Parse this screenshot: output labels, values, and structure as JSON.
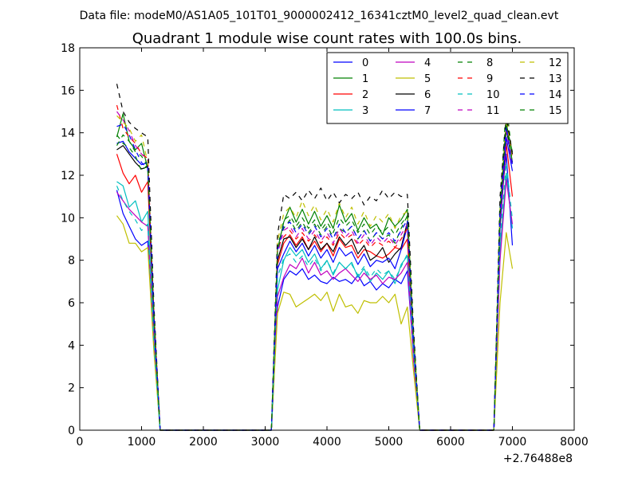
{
  "chart_data": {
    "type": "line",
    "suptitle": "Data file: modeM0/AS1A05_101T01_9000002412_16341cztM0_level2_quad_clean.evt",
    "title": "Quadrant 1 module wise count rates with 100.0s bins.",
    "xlabel": "",
    "ylabel": "",
    "x_offset_label": "+2.76488e8",
    "xlim": [
      0,
      8000
    ],
    "ylim": [
      0,
      18
    ],
    "xticks": [
      0,
      1000,
      2000,
      3000,
      4000,
      5000,
      6000,
      7000,
      8000
    ],
    "yticks": [
      0,
      2,
      4,
      6,
      8,
      10,
      12,
      14,
      16,
      18
    ],
    "grid": false,
    "legend_position": "top-right",
    "x": [
      600,
      700,
      800,
      900,
      1000,
      1100,
      1200,
      1300,
      1400,
      1500,
      1600,
      1700,
      1800,
      1900,
      2000,
      2100,
      2200,
      2300,
      2400,
      2500,
      2600,
      2700,
      2800,
      2900,
      3000,
      3100,
      3200,
      3300,
      3400,
      3500,
      3600,
      3700,
      3800,
      3900,
      4000,
      4100,
      4200,
      4300,
      4400,
      4500,
      4600,
      4700,
      4800,
      4900,
      5000,
      5100,
      5200,
      5300,
      5400,
      5500,
      5600,
      5700,
      5800,
      5900,
      6000,
      6100,
      6200,
      6300,
      6400,
      6500,
      6600,
      6700,
      6800,
      6900,
      7000
    ],
    "series": [
      {
        "name": "0",
        "color": "#0000ff",
        "dash": "solid",
        "values": [
          11.3,
          10.2,
          9.6,
          9.0,
          8.7,
          8.9,
          4.0,
          0,
          0,
          0,
          0,
          0,
          0,
          0,
          0,
          0,
          0,
          0,
          0,
          0,
          0,
          0,
          0,
          0,
          0,
          0,
          5.8,
          7.1,
          7.5,
          7.3,
          7.6,
          7.1,
          7.3,
          7.0,
          6.9,
          7.2,
          7.0,
          7.1,
          6.9,
          7.3,
          6.8,
          7.0,
          6.6,
          6.9,
          6.7,
          7.1,
          6.9,
          7.5,
          3.5,
          0,
          0,
          0,
          0,
          0,
          0,
          0,
          0,
          0,
          0,
          0,
          0,
          0,
          10.2,
          13.0,
          8.7
        ]
      },
      {
        "name": "1",
        "color": "#008000",
        "dash": "solid",
        "values": [
          13.8,
          14.9,
          13.6,
          13.2,
          13.5,
          12.3,
          5.5,
          0,
          0,
          0,
          0,
          0,
          0,
          0,
          0,
          0,
          0,
          0,
          0,
          0,
          0,
          0,
          0,
          0,
          0,
          0,
          8.5,
          9.8,
          10.5,
          9.8,
          10.4,
          9.7,
          10.3,
          9.6,
          10.1,
          9.5,
          10.6,
          9.8,
          10.2,
          9.4,
          10.0,
          9.5,
          9.7,
          9.2,
          10.0,
          9.6,
          9.9,
          10.4,
          4.5,
          0,
          0,
          0,
          0,
          0,
          0,
          0,
          0,
          0,
          0,
          0,
          0,
          0,
          10.0,
          14.4,
          13.1
        ]
      },
      {
        "name": "2",
        "color": "#ff0000",
        "dash": "solid",
        "values": [
          13.0,
          12.1,
          11.6,
          12.0,
          11.2,
          11.7,
          5.0,
          0,
          0,
          0,
          0,
          0,
          0,
          0,
          0,
          0,
          0,
          0,
          0,
          0,
          0,
          0,
          0,
          0,
          0,
          0,
          7.8,
          8.8,
          9.2,
          8.7,
          9.1,
          8.5,
          8.9,
          8.4,
          8.8,
          8.2,
          9.0,
          8.6,
          8.7,
          8.1,
          8.5,
          8.4,
          8.2,
          8.1,
          8.3,
          8.6,
          8.5,
          9.0,
          4.0,
          0,
          0,
          0,
          0,
          0,
          0,
          0,
          0,
          0,
          0,
          0,
          0,
          0,
          9.5,
          13.5,
          11.0
        ]
      },
      {
        "name": "3",
        "color": "#00bfbf",
        "dash": "solid",
        "values": [
          11.7,
          11.5,
          10.5,
          10.8,
          9.8,
          10.3,
          4.3,
          0,
          0,
          0,
          0,
          0,
          0,
          0,
          0,
          0,
          0,
          0,
          0,
          0,
          0,
          0,
          0,
          0,
          0,
          0,
          6.6,
          8.0,
          8.6,
          8.2,
          8.5,
          7.9,
          8.3,
          7.6,
          8.0,
          7.3,
          7.9,
          7.6,
          7.9,
          7.2,
          7.6,
          7.0,
          7.4,
          7.1,
          7.5,
          6.9,
          7.8,
          8.2,
          3.5,
          0,
          0,
          0,
          0,
          0,
          0,
          0,
          0,
          0,
          0,
          0,
          0,
          0,
          8.5,
          12.1,
          9.5
        ]
      },
      {
        "name": "4",
        "color": "#bf00bf",
        "dash": "solid",
        "values": [
          11.2,
          10.8,
          10.4,
          10.1,
          9.8,
          9.6,
          4.1,
          0,
          0,
          0,
          0,
          0,
          0,
          0,
          0,
          0,
          0,
          0,
          0,
          0,
          0,
          0,
          0,
          0,
          0,
          0,
          6.3,
          7.2,
          7.8,
          7.6,
          8.1,
          7.4,
          7.9,
          7.3,
          7.5,
          7.1,
          7.4,
          7.6,
          7.3,
          7.0,
          7.4,
          7.1,
          7.3,
          6.9,
          7.2,
          7.1,
          7.4,
          7.9,
          3.3,
          0,
          0,
          0,
          0,
          0,
          0,
          0,
          0,
          0,
          0,
          0,
          0,
          0,
          8.0,
          11.8,
          9.7
        ]
      },
      {
        "name": "5",
        "color": "#bfbf00",
        "dash": "solid",
        "values": [
          10.1,
          9.7,
          8.8,
          8.8,
          8.4,
          8.6,
          3.7,
          0,
          0,
          0,
          0,
          0,
          0,
          0,
          0,
          0,
          0,
          0,
          0,
          0,
          0,
          0,
          0,
          0,
          0,
          0,
          5.5,
          6.5,
          6.4,
          5.8,
          6.0,
          6.2,
          6.4,
          6.1,
          6.5,
          5.6,
          6.4,
          5.8,
          5.9,
          5.5,
          6.1,
          6.0,
          6.0,
          6.3,
          6.0,
          6.4,
          5.0,
          5.8,
          2.8,
          0,
          0,
          0,
          0,
          0,
          0,
          0,
          0,
          0,
          0,
          0,
          0,
          0,
          6.0,
          9.3,
          7.6
        ]
      },
      {
        "name": "6",
        "color": "#000000",
        "dash": "solid",
        "values": [
          13.2,
          13.4,
          13.0,
          12.6,
          12.3,
          12.4,
          5.3,
          0,
          0,
          0,
          0,
          0,
          0,
          0,
          0,
          0,
          0,
          0,
          0,
          0,
          0,
          0,
          0,
          0,
          0,
          0,
          8.0,
          9.0,
          9.1,
          8.6,
          9.0,
          8.5,
          9.1,
          8.5,
          8.8,
          8.4,
          9.1,
          8.7,
          9.0,
          8.3,
          8.7,
          8.0,
          8.2,
          8.6,
          7.9,
          8.3,
          8.6,
          9.8,
          4.2,
          0,
          0,
          0,
          0,
          0,
          0,
          0,
          0,
          0,
          0,
          0,
          0,
          0,
          9.8,
          14.2,
          12.6
        ]
      },
      {
        "name": "7",
        "color": "#0000ff",
        "dash": "solid",
        "values": [
          13.5,
          13.6,
          13.1,
          12.8,
          12.5,
          12.6,
          5.4,
          0,
          0,
          0,
          0,
          0,
          0,
          0,
          0,
          0,
          0,
          0,
          0,
          0,
          0,
          0,
          0,
          0,
          0,
          0,
          7.6,
          8.3,
          8.9,
          8.4,
          8.8,
          8.2,
          8.7,
          8.1,
          8.5,
          7.9,
          8.6,
          8.2,
          8.4,
          7.8,
          8.3,
          7.7,
          8.0,
          7.9,
          8.1,
          7.6,
          8.5,
          9.6,
          4.1,
          0,
          0,
          0,
          0,
          0,
          0,
          0,
          0,
          0,
          0,
          0,
          0,
          0,
          9.6,
          13.8,
          12.2
        ]
      },
      {
        "name": "8",
        "color": "#008000",
        "dash": "dashed",
        "values": [
          13.9,
          13.5,
          13.3,
          12.9,
          12.2,
          12.5,
          5.3,
          0,
          0,
          0,
          0,
          0,
          0,
          0,
          0,
          0,
          0,
          0,
          0,
          0,
          0,
          0,
          0,
          0,
          0,
          0,
          8.8,
          9.5,
          9.9,
          9.4,
          9.8,
          9.3,
          9.7,
          9.2,
          9.6,
          9.1,
          9.5,
          9.3,
          9.6,
          9.0,
          9.4,
          8.9,
          9.3,
          9.0,
          9.2,
          8.8,
          9.5,
          10.1,
          4.4,
          0,
          0,
          0,
          0,
          0,
          0,
          0,
          0,
          0,
          0,
          0,
          0,
          0,
          10.5,
          15.4,
          12.8
        ]
      },
      {
        "name": "9",
        "color": "#ff0000",
        "dash": "dashed",
        "values": [
          15.3,
          14.2,
          13.8,
          13.5,
          13.0,
          12.8,
          5.6,
          0,
          0,
          0,
          0,
          0,
          0,
          0,
          0,
          0,
          0,
          0,
          0,
          0,
          0,
          0,
          0,
          0,
          0,
          0,
          8.6,
          9.1,
          9.4,
          9.0,
          9.3,
          8.9,
          9.2,
          8.8,
          9.1,
          8.7,
          9.3,
          9.0,
          9.2,
          8.7,
          9.0,
          8.6,
          8.9,
          8.7,
          8.9,
          8.6,
          9.0,
          9.5,
          4.2,
          0,
          0,
          0,
          0,
          0,
          0,
          0,
          0,
          0,
          0,
          0,
          0,
          0,
          10.1,
          14.8,
          12.9
        ]
      },
      {
        "name": "10",
        "color": "#00bfbf",
        "dash": "dashed",
        "values": [
          11.5,
          10.8,
          10.3,
          9.9,
          9.4,
          9.7,
          4.1,
          0,
          0,
          0,
          0,
          0,
          0,
          0,
          0,
          0,
          0,
          0,
          0,
          0,
          0,
          0,
          0,
          0,
          0,
          0,
          7.2,
          8.1,
          8.3,
          7.9,
          8.2,
          7.7,
          8.1,
          7.5,
          8.0,
          7.4,
          7.9,
          7.6,
          7.8,
          7.3,
          7.7,
          7.2,
          7.6,
          7.3,
          7.5,
          7.1,
          7.7,
          8.3,
          3.6,
          0,
          0,
          0,
          0,
          0,
          0,
          0,
          0,
          0,
          0,
          0,
          0,
          0,
          8.9,
          12.6,
          9.9
        ]
      },
      {
        "name": "11",
        "color": "#bf00bf",
        "dash": "dashed",
        "values": [
          15.0,
          14.6,
          14.1,
          13.4,
          13.0,
          12.7,
          5.5,
          0,
          0,
          0,
          0,
          0,
          0,
          0,
          0,
          0,
          0,
          0,
          0,
          0,
          0,
          0,
          0,
          0,
          0,
          0,
          8.3,
          9.4,
          9.6,
          9.1,
          9.5,
          9.0,
          9.4,
          8.9,
          9.3,
          8.8,
          9.5,
          9.1,
          9.4,
          8.8,
          9.2,
          8.7,
          9.1,
          8.8,
          9.1,
          8.7,
          9.2,
          9.7,
          4.3,
          0,
          0,
          0,
          0,
          0,
          0,
          0,
          0,
          0,
          0,
          0,
          0,
          0,
          9.9,
          14.1,
          12.4
        ]
      },
      {
        "name": "12",
        "color": "#bfbf00",
        "dash": "dashed",
        "values": [
          14.8,
          14.5,
          14.2,
          13.6,
          13.9,
          12.6,
          5.5,
          0,
          0,
          0,
          0,
          0,
          0,
          0,
          0,
          0,
          0,
          0,
          0,
          0,
          0,
          0,
          0,
          0,
          0,
          0,
          8.9,
          10.2,
          10.5,
          10.0,
          10.8,
          10.1,
          10.6,
          9.9,
          10.4,
          9.8,
          10.7,
          10.0,
          10.5,
          9.7,
          10.3,
          9.6,
          10.1,
          9.8,
          10.2,
          9.5,
          10.1,
          10.3,
          4.5,
          0,
          0,
          0,
          0,
          0,
          0,
          0,
          0,
          0,
          0,
          0,
          0,
          0,
          10.4,
          14.6,
          12.7
        ]
      },
      {
        "name": "13",
        "color": "#000000",
        "dash": "dashed",
        "values": [
          16.3,
          15.0,
          14.5,
          14.2,
          14.0,
          13.8,
          5.9,
          0,
          0,
          0,
          0,
          0,
          0,
          0,
          0,
          0,
          0,
          0,
          0,
          0,
          0,
          0,
          0,
          0,
          0,
          0,
          9.2,
          11.1,
          10.9,
          11.2,
          10.8,
          11.3,
          10.9,
          11.4,
          10.8,
          11.2,
          10.7,
          11.1,
          10.9,
          11.2,
          10.6,
          11.0,
          10.8,
          11.3,
          10.9,
          11.2,
          11.0,
          11.1,
          4.8,
          0,
          0,
          0,
          0,
          0,
          0,
          0,
          0,
          0,
          0,
          0,
          0,
          0,
          11.0,
          14.8,
          13.0
        ]
      },
      {
        "name": "14",
        "color": "#0000ff",
        "dash": "dashed",
        "values": [
          14.3,
          14.4,
          13.9,
          13.2,
          12.6,
          12.3,
          5.4,
          0,
          0,
          0,
          0,
          0,
          0,
          0,
          0,
          0,
          0,
          0,
          0,
          0,
          0,
          0,
          0,
          0,
          0,
          0,
          8.5,
          9.6,
          9.8,
          9.3,
          9.7,
          9.2,
          9.6,
          9.1,
          9.5,
          9.0,
          9.7,
          9.3,
          9.6,
          9.0,
          9.4,
          8.9,
          9.3,
          9.0,
          9.3,
          8.9,
          9.4,
          9.9,
          4.3,
          0,
          0,
          0,
          0,
          0,
          0,
          0,
          0,
          0,
          0,
          0,
          0,
          0,
          10.3,
          14.3,
          12.5
        ]
      },
      {
        "name": "15",
        "color": "#008000",
        "dash": "dashed",
        "values": [
          13.4,
          13.9,
          13.6,
          13.1,
          12.9,
          12.4,
          5.4,
          0,
          0,
          0,
          0,
          0,
          0,
          0,
          0,
          0,
          0,
          0,
          0,
          0,
          0,
          0,
          0,
          0,
          0,
          0,
          8.4,
          9.9,
          10.1,
          9.6,
          10.0,
          9.5,
          9.9,
          9.4,
          9.8,
          9.3,
          10.0,
          9.6,
          9.9,
          9.3,
          9.7,
          9.2,
          9.6,
          9.3,
          9.6,
          9.2,
          9.7,
          10.1,
          4.4,
          0,
          0,
          0,
          0,
          0,
          0,
          0,
          0,
          0,
          0,
          0,
          0,
          0,
          10.2,
          14.5,
          12.6
        ]
      }
    ]
  }
}
